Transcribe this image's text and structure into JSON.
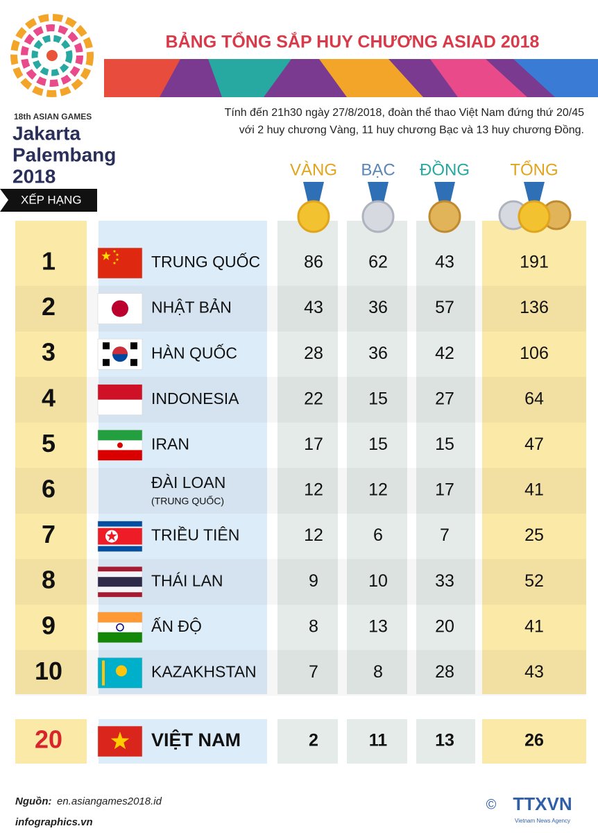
{
  "logo": {
    "event": "18th ASIAN GAMES",
    "city1": "Jakarta",
    "city2": "Palembang",
    "year": "2018"
  },
  "header": {
    "title": "BẢNG TỔNG SẮP HUY CHƯƠNG ASIAD 2018",
    "intro": [
      "Tính đến 21h30 ngày 27/8/2018, đoàn thể thao Việt Nam đứng thứ 20/45",
      "với 2 huy chương Vàng, 11 huy chương Bạc và 13 huy chương Đồng."
    ]
  },
  "table": {
    "label": "XẾP HẠNG",
    "columns": [
      "VÀNG",
      "BẠC",
      "ĐỒNG",
      "TỔNG"
    ],
    "rows": [
      {
        "rank": 1,
        "country": "TRUNG QUỐC",
        "medals": [
          86,
          62,
          43,
          191
        ]
      },
      {
        "rank": 2,
        "country": "NHẬT BẢN",
        "medals": [
          43,
          36,
          57,
          136
        ]
      },
      {
        "rank": 3,
        "country": "HÀN QUỐC",
        "medals": [
          28,
          36,
          42,
          106
        ]
      },
      {
        "rank": 4,
        "country": "INDONESIA",
        "medals": [
          22,
          15,
          27,
          64
        ]
      },
      {
        "rank": 5,
        "country": "IRAN",
        "medals": [
          17,
          15,
          15,
          47
        ]
      },
      {
        "rank": 6,
        "country": "ĐÀI LOAN",
        "note": "(TRUNG QUỐC)",
        "medals": [
          12,
          12,
          17,
          41
        ]
      },
      {
        "rank": 7,
        "country": "TRIỀU TIÊN",
        "medals": [
          12,
          6,
          7,
          25
        ]
      },
      {
        "rank": 8,
        "country": "THÁI LAN",
        "medals": [
          9,
          10,
          33,
          52
        ]
      },
      {
        "rank": 9,
        "country": "ẤN ĐỘ",
        "medals": [
          8,
          13,
          20,
          41
        ]
      },
      {
        "rank": 10,
        "country": "KAZAKHSTAN",
        "medals": [
          7,
          8,
          28,
          43
        ]
      }
    ],
    "highlight": {
      "rank": 20,
      "country": "VIỆT NAM",
      "medals": [
        2,
        11,
        13,
        26
      ]
    }
  },
  "footer": {
    "source_label": "Nguồn:",
    "source": "en.asiangames2018.id",
    "site": "infographics.vn",
    "copyright": "©",
    "agency": "TTXVN",
    "agency_full": "Vietnam News Agency"
  }
}
